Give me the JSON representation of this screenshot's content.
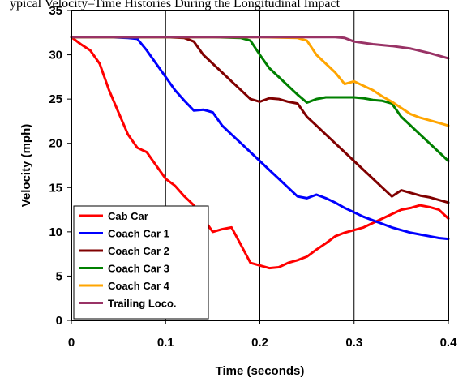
{
  "chart_data": {
    "type": "line",
    "title": "",
    "title_fragment": "ypical Velocity–Time Histories During the Longitudinal Impact",
    "xlabel": "Time (seconds)",
    "ylabel": "Velocity (mph)",
    "xlim": [
      0,
      0.4
    ],
    "ylim": [
      0,
      35
    ],
    "xticks": [
      "0",
      "0.1",
      "0.2",
      "0.3",
      "0.4"
    ],
    "yticks": [
      "0",
      "5",
      "10",
      "15",
      "20",
      "25",
      "30",
      "35"
    ],
    "grid": "vertical gridlines at x tick marks",
    "legend_placement": "bottom-left",
    "series": [
      {
        "name": "Cab Car",
        "color": "#ff0000",
        "x": [
          0,
          0.01,
          0.02,
          0.03,
          0.04,
          0.05,
          0.06,
          0.07,
          0.08,
          0.09,
          0.1,
          0.11,
          0.12,
          0.13,
          0.14,
          0.15,
          0.16,
          0.17,
          0.18,
          0.19,
          0.2,
          0.21,
          0.22,
          0.23,
          0.24,
          0.25,
          0.26,
          0.27,
          0.28,
          0.29,
          0.3,
          0.31,
          0.32,
          0.33,
          0.34,
          0.35,
          0.36,
          0.37,
          0.38,
          0.39,
          0.4
        ],
        "y": [
          32,
          31.2,
          30.5,
          29,
          26,
          23.5,
          21,
          19.5,
          19,
          17.5,
          16,
          15.2,
          14,
          13,
          11.5,
          10,
          10.3,
          10.5,
          8.5,
          6.5,
          6.2,
          5.9,
          6,
          6.5,
          6.8,
          7.2,
          8,
          8.7,
          9.5,
          9.9,
          10.2,
          10.5,
          11,
          11.5,
          12,
          12.5,
          12.7,
          13,
          12.8,
          12.5,
          11.5
        ]
      },
      {
        "name": "Coach Car 1",
        "color": "#0000ff",
        "x": [
          0,
          0.02,
          0.04,
          0.06,
          0.07,
          0.08,
          0.09,
          0.1,
          0.11,
          0.12,
          0.13,
          0.14,
          0.15,
          0.16,
          0.17,
          0.18,
          0.19,
          0.2,
          0.21,
          0.22,
          0.23,
          0.24,
          0.25,
          0.26,
          0.27,
          0.28,
          0.29,
          0.3,
          0.31,
          0.32,
          0.33,
          0.34,
          0.35,
          0.36,
          0.37,
          0.38,
          0.39,
          0.4
        ],
        "y": [
          32,
          32,
          32,
          31.9,
          31.8,
          30.5,
          29,
          27.5,
          26,
          24.8,
          23.7,
          23.8,
          23.5,
          22,
          21,
          20,
          19,
          18,
          17,
          16,
          15,
          14,
          13.8,
          14.2,
          13.8,
          13.3,
          12.7,
          12.2,
          11.7,
          11.3,
          10.9,
          10.5,
          10.2,
          9.9,
          9.7,
          9.5,
          9.3,
          9.2
        ]
      },
      {
        "name": "Coach Car 2",
        "color": "#800000",
        "x": [
          0,
          0.05,
          0.1,
          0.12,
          0.13,
          0.14,
          0.15,
          0.16,
          0.17,
          0.18,
          0.19,
          0.2,
          0.21,
          0.22,
          0.23,
          0.24,
          0.25,
          0.26,
          0.27,
          0.28,
          0.29,
          0.3,
          0.31,
          0.32,
          0.33,
          0.34,
          0.35,
          0.36,
          0.37,
          0.38,
          0.39,
          0.4
        ],
        "y": [
          32,
          32,
          32,
          31.9,
          31.5,
          30,
          29,
          28,
          27,
          26,
          25,
          24.7,
          25.1,
          25,
          24.7,
          24.5,
          23,
          22,
          21,
          20,
          19,
          18,
          17,
          16,
          15,
          14,
          14.7,
          14.4,
          14.1,
          13.9,
          13.6,
          13.3
        ]
      },
      {
        "name": "Coach Car 3",
        "color": "#008000",
        "x": [
          0,
          0.05,
          0.1,
          0.15,
          0.18,
          0.19,
          0.2,
          0.21,
          0.22,
          0.23,
          0.24,
          0.25,
          0.26,
          0.27,
          0.28,
          0.29,
          0.3,
          0.31,
          0.32,
          0.33,
          0.34,
          0.35,
          0.36,
          0.37,
          0.38,
          0.39,
          0.4
        ],
        "y": [
          32,
          32,
          32,
          32,
          31.9,
          31.6,
          30,
          28.5,
          27.5,
          26.5,
          25.5,
          24.6,
          25,
          25.2,
          25.2,
          25.2,
          25.2,
          25.1,
          24.9,
          24.8,
          24.5,
          23,
          22,
          21,
          20,
          19,
          18
        ]
      },
      {
        "name": "Coach Car 4",
        "color": "#ffa500",
        "x": [
          0,
          0.05,
          0.1,
          0.15,
          0.2,
          0.24,
          0.25,
          0.26,
          0.27,
          0.28,
          0.29,
          0.3,
          0.31,
          0.32,
          0.33,
          0.34,
          0.35,
          0.36,
          0.37,
          0.38,
          0.39,
          0.4
        ],
        "y": [
          32,
          32,
          32,
          32,
          32,
          31.9,
          31.6,
          30,
          29,
          28,
          26.7,
          27,
          26.5,
          26,
          25.3,
          24.7,
          24,
          23.3,
          22.9,
          22.6,
          22.3,
          22
        ]
      },
      {
        "name": "Trailing Loco.",
        "color": "#993366",
        "x": [
          0,
          0.05,
          0.1,
          0.15,
          0.2,
          0.25,
          0.28,
          0.29,
          0.3,
          0.32,
          0.34,
          0.36,
          0.38,
          0.4
        ],
        "y": [
          32,
          32,
          32,
          32,
          32,
          32,
          32,
          31.9,
          31.5,
          31.2,
          31,
          30.7,
          30.2,
          29.6
        ]
      }
    ]
  }
}
